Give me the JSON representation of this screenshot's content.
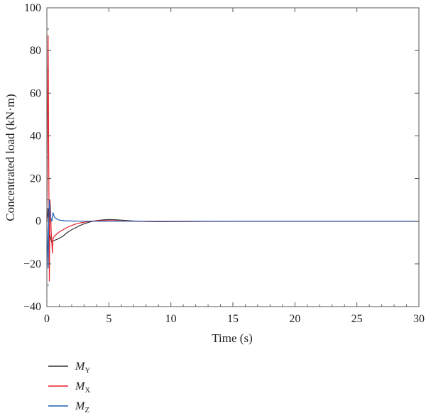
{
  "chart_data": {
    "type": "line",
    "xlabel": "Time (s)",
    "ylabel": "Concentrated load (kN·m)",
    "xlim": [
      0,
      30
    ],
    "ylim": [
      -40,
      100
    ],
    "x_ticks": [
      "0",
      "5",
      "10",
      "15",
      "20",
      "25",
      "30"
    ],
    "y_ticks": [
      "−40",
      "−20",
      "0",
      "20",
      "40",
      "60",
      "80",
      "100"
    ],
    "grid": false,
    "legend_position": "bottom-left",
    "series": [
      {
        "name": "M_Y",
        "label_main": "M",
        "label_sub": "Y",
        "color": "#333333",
        "x": [
          0,
          0.05,
          0.1,
          0.15,
          0.2,
          0.3,
          0.4,
          0.5,
          0.6,
          0.8,
          1.0,
          1.3,
          1.6,
          2.0,
          2.5,
          3.0,
          3.5,
          4.0,
          4.5,
          5.0,
          5.5,
          6.0,
          6.5,
          7.0,
          8.0,
          9.0,
          10,
          12,
          15,
          20,
          25,
          30
        ],
        "y": [
          0,
          2,
          6,
          0,
          -5,
          -8,
          -10,
          -9,
          -9,
          -8.5,
          -8,
          -7,
          -5.5,
          -4,
          -2.5,
          -1.2,
          -0.3,
          0.3,
          0.6,
          0.8,
          0.7,
          0.5,
          0.3,
          0.1,
          -0.1,
          -0.2,
          -0.15,
          -0.1,
          0,
          0,
          0,
          0
        ]
      },
      {
        "name": "M_X",
        "label_main": "M",
        "label_sub": "X",
        "color": "#e8202a",
        "x": [
          0,
          0.05,
          0.1,
          0.15,
          0.2,
          0.25,
          0.3,
          0.35,
          0.4,
          0.45,
          0.5,
          0.6,
          0.8,
          1.0,
          1.3,
          1.6,
          2.0,
          2.5,
          3.0,
          3.5,
          4.0,
          4.5,
          5.0,
          5.5,
          6.0,
          7.0,
          8.0,
          10,
          15,
          20,
          25,
          30
        ],
        "y": [
          0,
          40,
          87,
          30,
          -28,
          10,
          5,
          -5,
          -10,
          -15,
          -8,
          -7,
          -6,
          -5,
          -4,
          -3,
          -2,
          -1,
          -0.5,
          0,
          0.2,
          0.3,
          0.3,
          0.2,
          0.1,
          0,
          -0.1,
          -0.1,
          0,
          0,
          0,
          0
        ]
      },
      {
        "name": "M_Z",
        "label_main": "M",
        "label_sub": "Z",
        "color": "#1f5fb5",
        "x": [
          0,
          0.05,
          0.1,
          0.15,
          0.2,
          0.3,
          0.4,
          0.5,
          0.6,
          0.7,
          0.8,
          1.0,
          1.5,
          2.0,
          3.0,
          4.0,
          5.0,
          6.0,
          8.0,
          10,
          15,
          20,
          25,
          30
        ],
        "y": [
          0,
          -10,
          -22,
          0,
          10,
          2,
          0,
          4,
          2,
          1.5,
          1,
          0.5,
          0.2,
          0.1,
          0,
          0,
          0,
          0,
          0,
          0,
          0,
          0,
          0,
          0
        ]
      }
    ]
  }
}
